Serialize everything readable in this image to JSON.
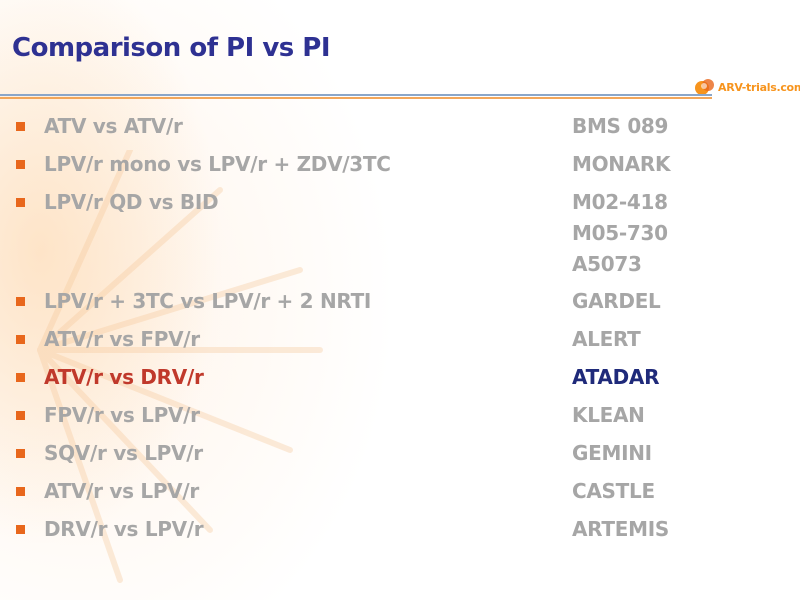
{
  "slide": {
    "title": "Comparison of PI vs PI",
    "logo_text": "ARV-trials.com"
  },
  "rows": [
    {
      "label": "ATV vs ATV/r",
      "studies": [
        "BMS 089"
      ],
      "highlight": false
    },
    {
      "label": "LPV/r mono vs LPV/r + ZDV/3TC",
      "studies": [
        "MONARK"
      ],
      "highlight": false
    },
    {
      "label": "LPV/r QD vs BID",
      "studies": [
        "M02-418",
        "M05-730",
        "A5073"
      ],
      "highlight": false
    },
    {
      "label": "LPV/r + 3TC vs LPV/r + 2 NRTI",
      "studies": [
        "GARDEL"
      ],
      "highlight": false
    },
    {
      "label": "ATV/r vs FPV/r",
      "studies": [
        "ALERT"
      ],
      "highlight": false
    },
    {
      "label": "ATV/r vs DRV/r",
      "studies": [
        "ATADAR"
      ],
      "highlight": true
    },
    {
      "label": "FPV/r vs LPV/r",
      "studies": [
        "KLEAN"
      ],
      "highlight": false
    },
    {
      "label": "SQV/r vs LPV/r",
      "studies": [
        "GEMINI"
      ],
      "highlight": false
    },
    {
      "label": "ATV/r vs LPV/r",
      "studies": [
        "CASTLE"
      ],
      "highlight": false
    },
    {
      "label": "DRV/r vs LPV/r",
      "studies": [
        "ARTEMIS"
      ],
      "highlight": false
    }
  ],
  "colors": {
    "title": "#2e3192",
    "bullet": "#e8671c",
    "muted_text": "#a6a6a6",
    "highlight_label": "#c0392b",
    "highlight_study": "#1f2a7a",
    "logo": "#f7941d"
  }
}
